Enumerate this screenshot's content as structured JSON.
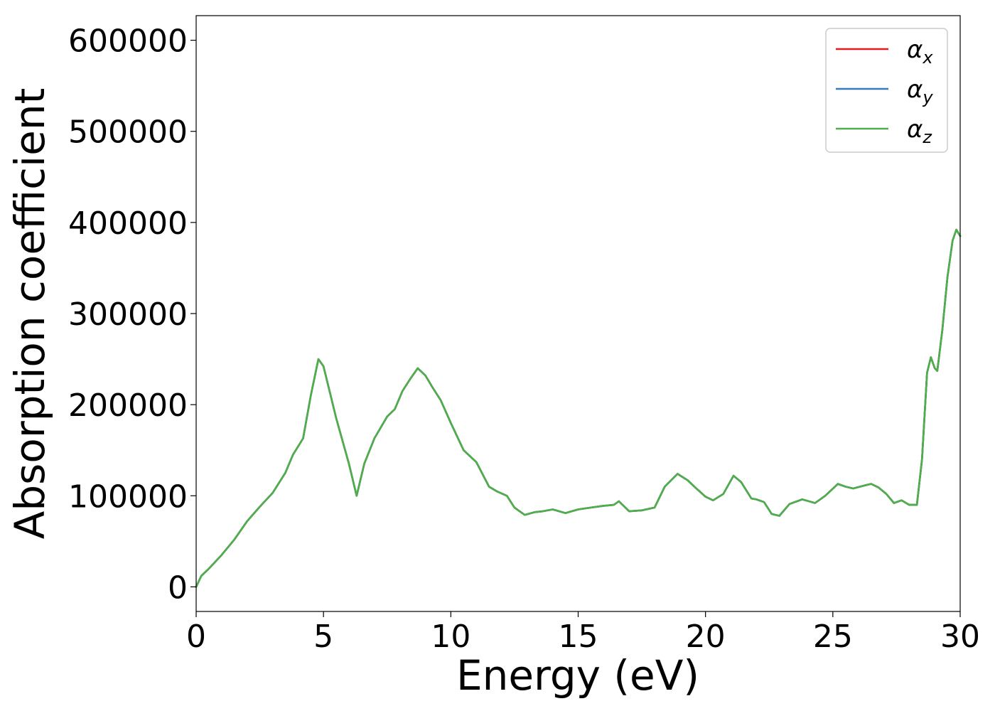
{
  "chart_data": {
    "type": "line",
    "xlabel": "Energy (eV)",
    "ylabel": "Absorption coefficient",
    "xlim": [
      0,
      30
    ],
    "ylim": [
      -27000,
      627000
    ],
    "xticks": [
      0,
      5,
      10,
      15,
      20,
      25,
      30
    ],
    "yticks": [
      0,
      100000,
      200000,
      300000,
      400000,
      500000,
      600000
    ],
    "grid": false,
    "legend_position": "top-right",
    "series": [
      {
        "name": "αx",
        "legend_symbol": "α",
        "legend_sub": "x",
        "color": "#e41a1c",
        "x": [
          0,
          0.2,
          0.5,
          1.0,
          1.5,
          2.0,
          2.5,
          3.0,
          3.5,
          3.8,
          4.2,
          4.5,
          4.8,
          5.0,
          5.5,
          6.0,
          6.3,
          6.6,
          7.0,
          7.5,
          7.8,
          8.1,
          8.4,
          8.7,
          9.0,
          9.3,
          9.6,
          10.0,
          10.5,
          11.0,
          11.5,
          11.8,
          12.2,
          12.5,
          12.9,
          13.3,
          13.6,
          14.0,
          14.5,
          15.0,
          15.5,
          16.0,
          16.4,
          16.6,
          17.0,
          17.5,
          18.0,
          18.4,
          18.9,
          19.3,
          19.6,
          20.0,
          20.3,
          20.7,
          21.1,
          21.4,
          21.8,
          22.0,
          22.3,
          22.6,
          22.9,
          23.3,
          23.8,
          24.3,
          24.7,
          25.2,
          25.5,
          25.8,
          26.2,
          26.5,
          26.8,
          27.1,
          27.4,
          27.7,
          28.0,
          28.3,
          28.5,
          28.7,
          28.85,
          29.0,
          29.1,
          29.3,
          29.5,
          29.7,
          29.85,
          30.0
        ],
        "y": [
          0,
          12000,
          20000,
          35000,
          52000,
          72000,
          88000,
          103000,
          125000,
          145000,
          163000,
          210000,
          250000,
          242000,
          185000,
          135000,
          100000,
          135000,
          163000,
          187000,
          195000,
          215000,
          228000,
          240000,
          232000,
          218000,
          205000,
          180000,
          150000,
          137000,
          110000,
          105000,
          100000,
          87000,
          79000,
          82000,
          83000,
          85000,
          81000,
          85000,
          87000,
          89000,
          90000,
          94000,
          83000,
          84000,
          87000,
          110000,
          124000,
          117000,
          109000,
          99000,
          95000,
          102000,
          122000,
          115000,
          97000,
          96000,
          93000,
          80000,
          78000,
          91000,
          96000,
          92000,
          100000,
          113000,
          110000,
          108000,
          111000,
          113000,
          109000,
          102000,
          92000,
          95000,
          90000,
          90000,
          140000,
          235000,
          252000,
          240000,
          237000,
          282000,
          340000,
          380000,
          392000,
          385000
        ]
      },
      {
        "name": "αy",
        "legend_symbol": "α",
        "legend_sub": "y",
        "color": "#377eb8",
        "x": [
          0,
          0.2,
          0.5,
          1.0,
          1.5,
          2.0,
          2.5,
          3.0,
          3.5,
          3.8,
          4.2,
          4.5,
          4.8,
          5.0,
          5.5,
          6.0,
          6.3,
          6.6,
          7.0,
          7.5,
          7.8,
          8.1,
          8.4,
          8.7,
          9.0,
          9.3,
          9.6,
          10.0,
          10.5,
          11.0,
          11.5,
          11.8,
          12.2,
          12.5,
          12.9,
          13.3,
          13.6,
          14.0,
          14.5,
          15.0,
          15.5,
          16.0,
          16.4,
          16.6,
          17.0,
          17.5,
          18.0,
          18.4,
          18.9,
          19.3,
          19.6,
          20.0,
          20.3,
          20.7,
          21.1,
          21.4,
          21.8,
          22.0,
          22.3,
          22.6,
          22.9,
          23.3,
          23.8,
          24.3,
          24.7,
          25.2,
          25.5,
          25.8,
          26.2,
          26.5,
          26.8,
          27.1,
          27.4,
          27.7,
          28.0,
          28.3,
          28.5,
          28.7,
          28.85,
          29.0,
          29.1,
          29.3,
          29.5,
          29.7,
          29.85,
          30.0
        ],
        "y": [
          0,
          12000,
          20000,
          35000,
          52000,
          72000,
          88000,
          103000,
          125000,
          145000,
          163000,
          210000,
          250000,
          242000,
          185000,
          135000,
          100000,
          135000,
          163000,
          187000,
          195000,
          215000,
          228000,
          240000,
          232000,
          218000,
          205000,
          180000,
          150000,
          137000,
          110000,
          105000,
          100000,
          87000,
          79000,
          82000,
          83000,
          85000,
          81000,
          85000,
          87000,
          89000,
          90000,
          94000,
          83000,
          84000,
          87000,
          110000,
          124000,
          117000,
          109000,
          99000,
          95000,
          102000,
          122000,
          115000,
          97000,
          96000,
          93000,
          80000,
          78000,
          91000,
          96000,
          92000,
          100000,
          113000,
          110000,
          108000,
          111000,
          113000,
          109000,
          102000,
          92000,
          95000,
          90000,
          90000,
          140000,
          235000,
          252000,
          240000,
          237000,
          282000,
          340000,
          380000,
          392000,
          385000
        ]
      },
      {
        "name": "αz",
        "legend_symbol": "α",
        "legend_sub": "z",
        "color": "#4daf4a",
        "x": [
          0,
          0.2,
          0.5,
          1.0,
          1.5,
          2.0,
          2.5,
          3.0,
          3.5,
          3.8,
          4.2,
          4.5,
          4.8,
          5.0,
          5.5,
          6.0,
          6.3,
          6.6,
          7.0,
          7.5,
          7.8,
          8.1,
          8.4,
          8.7,
          9.0,
          9.3,
          9.6,
          10.0,
          10.5,
          11.0,
          11.5,
          11.8,
          12.2,
          12.5,
          12.9,
          13.3,
          13.6,
          14.0,
          14.5,
          15.0,
          15.5,
          16.0,
          16.4,
          16.6,
          17.0,
          17.5,
          18.0,
          18.4,
          18.9,
          19.3,
          19.6,
          20.0,
          20.3,
          20.7,
          21.1,
          21.4,
          21.8,
          22.0,
          22.3,
          22.6,
          22.9,
          23.3,
          23.8,
          24.3,
          24.7,
          25.2,
          25.5,
          25.8,
          26.2,
          26.5,
          26.8,
          27.1,
          27.4,
          27.7,
          28.0,
          28.3,
          28.5,
          28.7,
          28.85,
          29.0,
          29.1,
          29.3,
          29.5,
          29.7,
          29.85,
          30.0
        ],
        "y": [
          0,
          12000,
          20000,
          35000,
          52000,
          72000,
          88000,
          103000,
          125000,
          145000,
          163000,
          210000,
          250000,
          242000,
          185000,
          135000,
          100000,
          135000,
          163000,
          187000,
          195000,
          215000,
          228000,
          240000,
          232000,
          218000,
          205000,
          180000,
          150000,
          137000,
          110000,
          105000,
          100000,
          87000,
          79000,
          82000,
          83000,
          85000,
          81000,
          85000,
          87000,
          89000,
          90000,
          94000,
          83000,
          84000,
          87000,
          110000,
          124000,
          117000,
          109000,
          99000,
          95000,
          102000,
          122000,
          115000,
          97000,
          96000,
          93000,
          80000,
          78000,
          91000,
          96000,
          92000,
          100000,
          113000,
          110000,
          108000,
          111000,
          113000,
          109000,
          102000,
          92000,
          95000,
          90000,
          90000,
          140000,
          235000,
          252000,
          240000,
          237000,
          282000,
          340000,
          380000,
          392000,
          385000
        ]
      }
    ]
  }
}
